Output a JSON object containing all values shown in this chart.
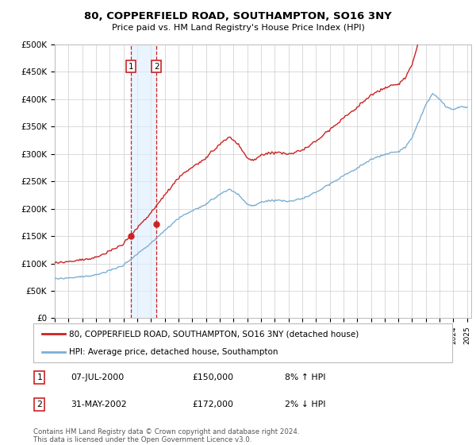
{
  "title": "80, COPPERFIELD ROAD, SOUTHAMPTON, SO16 3NY",
  "subtitle": "Price paid vs. HM Land Registry's House Price Index (HPI)",
  "ylim": [
    0,
    500000
  ],
  "yticks": [
    0,
    50000,
    100000,
    150000,
    200000,
    250000,
    300000,
    350000,
    400000,
    450000,
    500000
  ],
  "ytick_labels": [
    "£0",
    "£50K",
    "£100K",
    "£150K",
    "£200K",
    "£250K",
    "£300K",
    "£350K",
    "£400K",
    "£450K",
    "£500K"
  ],
  "hpi_color": "#7bafd4",
  "property_color": "#cc2222",
  "transaction1_date": 2000.52,
  "transaction1_price": 150000,
  "transaction2_date": 2002.41,
  "transaction2_price": 172000,
  "legend_property_label": "80, COPPERFIELD ROAD, SOUTHAMPTON, SO16 3NY (detached house)",
  "legend_hpi_label": "HPI: Average price, detached house, Southampton",
  "annotation1_date": "07-JUL-2000",
  "annotation1_price": "£150,000",
  "annotation1_hpi": "8% ↑ HPI",
  "annotation2_date": "31-MAY-2002",
  "annotation2_price": "£172,000",
  "annotation2_hpi": "2% ↓ HPI",
  "copyright_text": "Contains HM Land Registry data © Crown copyright and database right 2024.\nThis data is licensed under the Open Government Licence v3.0.",
  "background_color": "#ffffff",
  "grid_color": "#cccccc",
  "shade_color": "#ddeeff",
  "box_color": "#cc2222"
}
